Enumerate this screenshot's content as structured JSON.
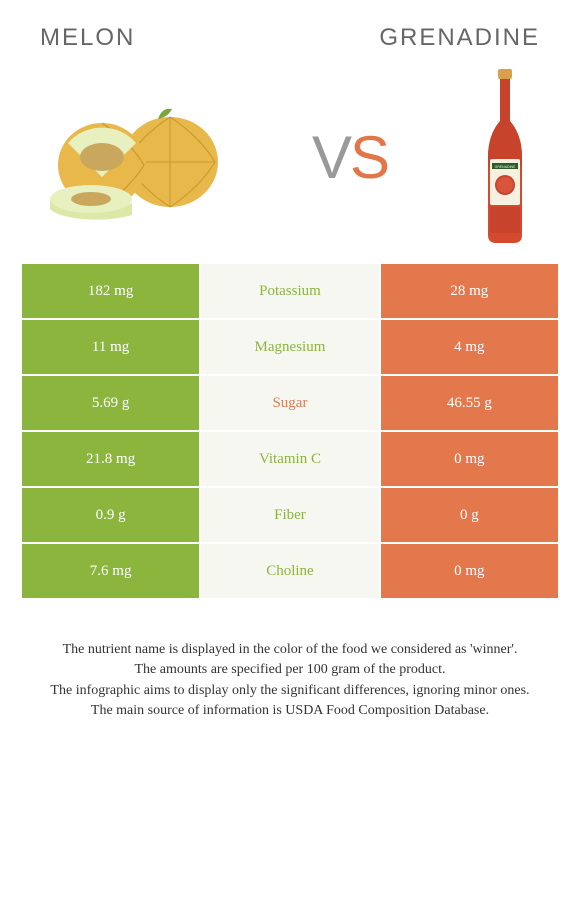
{
  "titles": {
    "left": "MELON",
    "right": "GRENADINE"
  },
  "vs": {
    "v": "V",
    "s": "S"
  },
  "colors": {
    "left_bg": "#8bb53d",
    "right_bg": "#e3784d",
    "mid_bg": "#f7f7f2",
    "left_text": "#8bb53d",
    "right_text": "#e3784d",
    "title_text": "#666666",
    "body_text": "#333333",
    "white": "#ffffff"
  },
  "nutrients": [
    {
      "name": "Potassium",
      "left": "182 mg",
      "right": "28 mg",
      "winner": "left"
    },
    {
      "name": "Magnesium",
      "left": "11 mg",
      "right": "4 mg",
      "winner": "left"
    },
    {
      "name": "Sugar",
      "left": "5.69 g",
      "right": "46.55 g",
      "winner": "right"
    },
    {
      "name": "Vitamin C",
      "left": "21.8 mg",
      "right": "0 mg",
      "winner": "left"
    },
    {
      "name": "Fiber",
      "left": "0.9 g",
      "right": "0 g",
      "winner": "left"
    },
    {
      "name": "Choline",
      "left": "7.6 mg",
      "right": "0 mg",
      "winner": "left"
    }
  ],
  "footer": {
    "line1": "The nutrient name is displayed in the color of the food we considered as 'winner'.",
    "line2": "The amounts are specified per 100 gram of the product.",
    "line3": "The infographic aims to display only the significant differences, ignoring minor ones.",
    "line4": "The main source of information is USDA Food Composition Database."
  }
}
